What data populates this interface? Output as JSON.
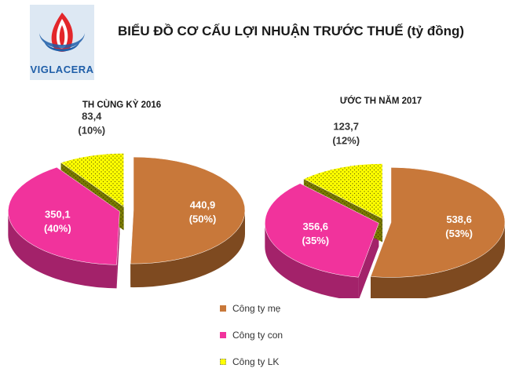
{
  "logo": {
    "text": "VIGLACERA"
  },
  "title": "BIỂU ĐỒ CƠ CẤU LỢI NHUẬN TRƯỚC THUẾ  (tỷ đồng)",
  "colors": {
    "parent": "#c8783a",
    "subsidiary": "#f1339c",
    "associate": "#ffff00"
  },
  "legend": [
    {
      "label": "Công ty mẹ",
      "color": "#c8783a"
    },
    {
      "label": "Công ty con",
      "color": "#f1339c"
    },
    {
      "label": "Công ty LK",
      "color": "#ffff00"
    }
  ],
  "chart_data": [
    {
      "type": "pie",
      "title": "TH CÙNG KỲ 2016",
      "categories": [
        "Công ty mẹ",
        "Công ty con",
        "Công ty LK"
      ],
      "values": [
        440.9,
        350.1,
        83.4
      ],
      "labels": [
        "440,9",
        "350,1",
        "83,4"
      ],
      "percents": [
        "(50%)",
        "(40%)",
        "(10%)"
      ]
    },
    {
      "type": "pie",
      "title": "ƯỚC TH NĂM 2017",
      "categories": [
        "Công ty mẹ",
        "Công ty con",
        "Công ty LK"
      ],
      "values": [
        538.6,
        356.6,
        123.7
      ],
      "labels": [
        "538,6",
        "356,6",
        "123,7"
      ],
      "percents": [
        "(53%)",
        "(35%)",
        "(12%)"
      ]
    }
  ]
}
